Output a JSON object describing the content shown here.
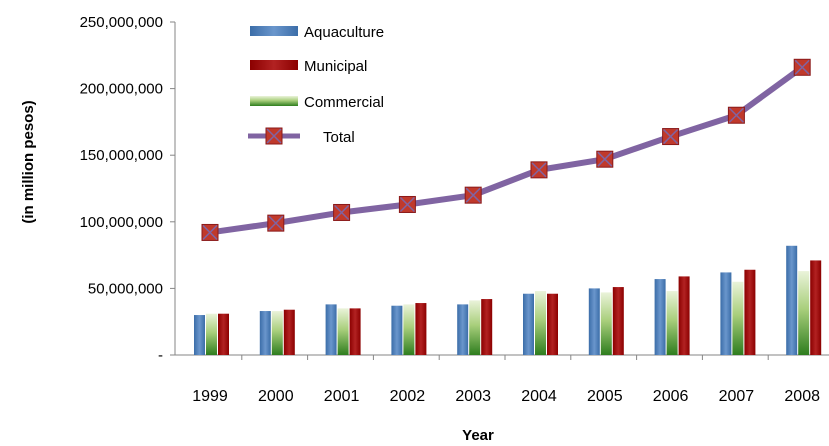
{
  "chart_data": {
    "type": "bar",
    "title": "",
    "xlabel": "Year",
    "ylabel": "(in million pesos)",
    "ylim": [
      0,
      250000000
    ],
    "y_ticks": [
      0,
      50000000,
      100000000,
      150000000,
      200000000,
      250000000
    ],
    "y_tick_labels": [
      "-",
      "50,000,000",
      "100,000,000",
      "150,000,000",
      "200,000,000",
      "250,000,000"
    ],
    "categories": [
      "1999",
      "2000",
      "2001",
      "2002",
      "2003",
      "2004",
      "2005",
      "2006",
      "2007",
      "2008"
    ],
    "legend_position": "top-left",
    "grid": false,
    "series": [
      {
        "name": "Aquaculture",
        "type": "bar",
        "color": "#4F81BD",
        "values": [
          30000000,
          33000000,
          38000000,
          37000000,
          38000000,
          46000000,
          50000000,
          57000000,
          62000000,
          82000000
        ]
      },
      {
        "name": "Municipal",
        "type": "bar",
        "color": "#A50021",
        "values": [
          31000000,
          34000000,
          35000000,
          39000000,
          42000000,
          46000000,
          51000000,
          59000000,
          64000000,
          71000000
        ]
      },
      {
        "name": "Commercial",
        "type": "bar",
        "color": "#4E9A06",
        "values": [
          31000000,
          33000000,
          35000000,
          38000000,
          41000000,
          48000000,
          47000000,
          48000000,
          55000000,
          63000000
        ]
      },
      {
        "name": "Total",
        "type": "line",
        "color": "#8064A2",
        "marker_color": "#C0392B",
        "values": [
          92000000,
          99000000,
          107000000,
          113000000,
          120000000,
          139000000,
          147000000,
          164000000,
          180000000,
          216000000
        ]
      }
    ]
  }
}
